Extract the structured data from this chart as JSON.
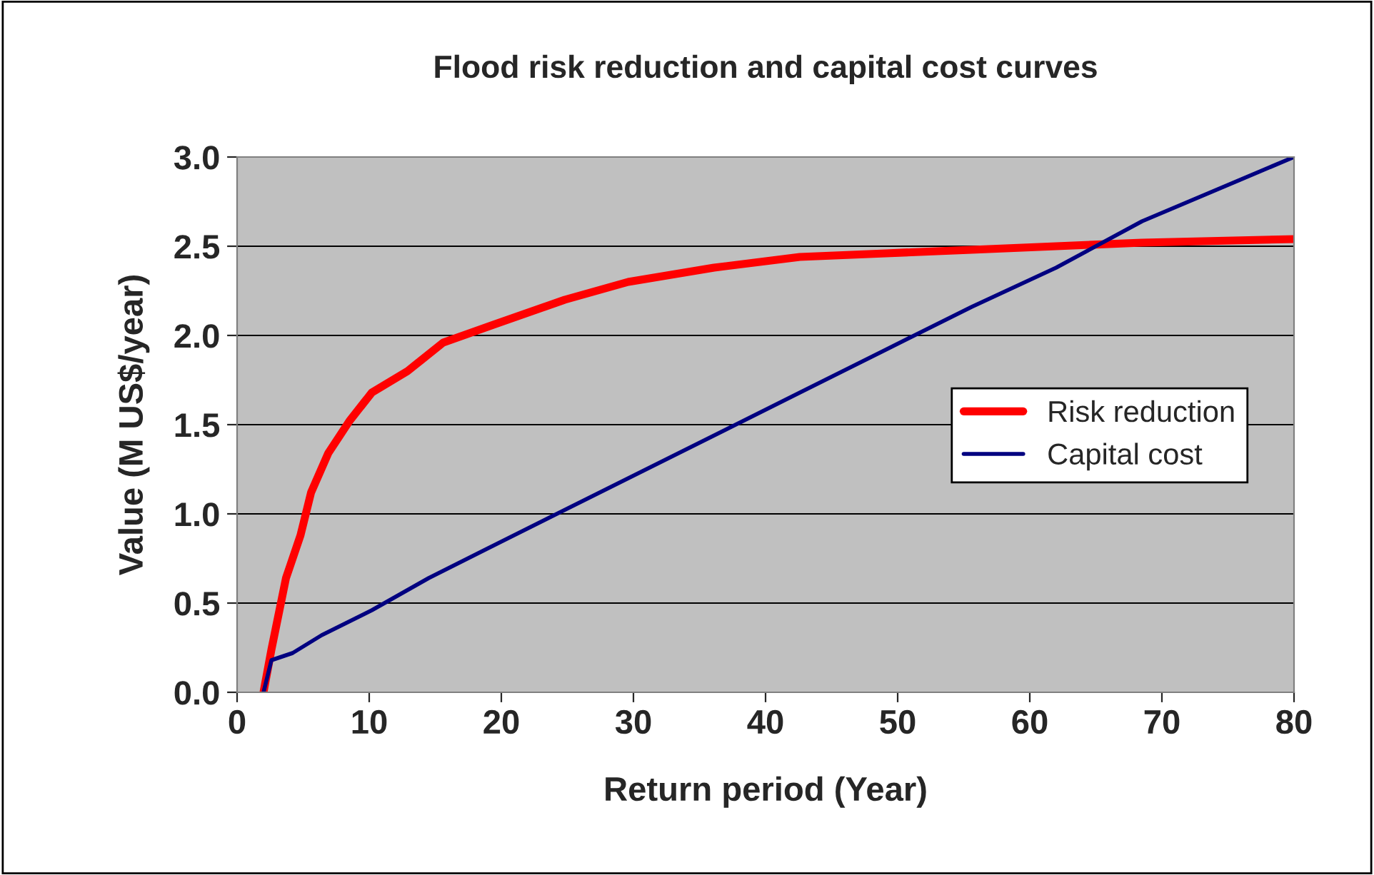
{
  "chart_data": {
    "type": "line",
    "title": "Flood risk reduction and capital cost curves",
    "xlabel": "Return period (Year)",
    "ylabel": "Value (M US$/year)",
    "xlim": [
      0,
      80
    ],
    "xticks": [
      0,
      10,
      20,
      30,
      40,
      50,
      60,
      70,
      80
    ],
    "ylim": [
      0,
      3
    ],
    "yticks": [
      {
        "value": 0,
        "label": "0.0"
      },
      {
        "value": 0.5,
        "label": "0.5"
      },
      {
        "value": 1,
        "label": "1.0"
      },
      {
        "value": 1.5,
        "label": "1.5"
      },
      {
        "value": 2,
        "label": "2.0"
      },
      {
        "value": 2.5,
        "label": "2.5"
      },
      {
        "value": 3,
        "label": "3.0"
      }
    ],
    "grid": "y",
    "legend": "right",
    "marker": "none",
    "line_style": "solid",
    "series": [
      {
        "name": "Risk reduction",
        "color": "#ff0000",
        "x": [
          2,
          2.6,
          3.7,
          4.8,
          5.6,
          6.9,
          8.5,
          10.2,
          12.9,
          15.6,
          19.4,
          24.8,
          29.6,
          36.1,
          42.6,
          49.1,
          55.6,
          62,
          68.5,
          80
        ],
        "values": [
          0,
          0.24,
          0.64,
          0.88,
          1.12,
          1.34,
          1.52,
          1.68,
          1.8,
          1.96,
          2.06,
          2.2,
          2.3,
          2.38,
          2.44,
          2.46,
          2.48,
          2.5,
          2.52,
          2.54
        ]
      },
      {
        "name": "Capital cost",
        "color": "#000080",
        "x": [
          2,
          2.6,
          4.2,
          6.4,
          10.2,
          14.5,
          18.8,
          24.2,
          30.7,
          37.2,
          42.6,
          49.1,
          55.6,
          62,
          68.5,
          80
        ],
        "values": [
          0,
          0.18,
          0.22,
          0.32,
          0.46,
          0.64,
          0.8,
          1.0,
          1.24,
          1.48,
          1.68,
          1.92,
          2.16,
          2.38,
          2.64,
          3.0
        ]
      }
    ]
  }
}
